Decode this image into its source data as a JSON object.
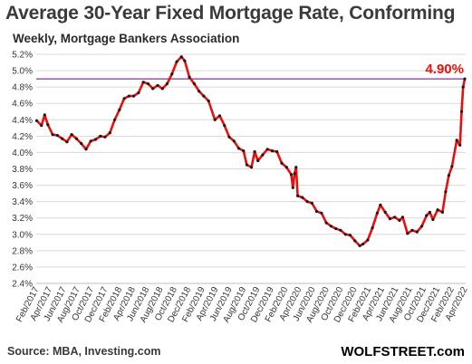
{
  "header": {
    "title": "Average 30-Year Fixed Mortgage Rate, Conforming",
    "subtitle": "Weekly, Mortgage Bankers Association"
  },
  "footer": {
    "source": "Source: MBA, Investing.com",
    "brand": "WOLFSTREET.com"
  },
  "colors": {
    "line": "#e8100c",
    "marker": "#1a1a1a",
    "reference_line": "#7b3a8c",
    "annotation": "#e8100c",
    "grid": "#d9d9d9"
  },
  "chart_data": {
    "type": "line",
    "title": "Average 30-Year Fixed Mortgage Rate, Conforming",
    "subtitle": "Weekly, Mortgage Bankers Association",
    "xlabel": "",
    "ylabel": "",
    "ylim": [
      2.4,
      5.2
    ],
    "y_ticks": [
      "2.4%",
      "2.6%",
      "2.8%",
      "3.0%",
      "3.2%",
      "3.4%",
      "3.6%",
      "3.8%",
      "4.0%",
      "4.2%",
      "4.4%",
      "4.6%",
      "4.8%",
      "5.0%",
      "5.2%"
    ],
    "x_ticks": [
      "Feb/2017",
      "Apr/2017",
      "Jun/2017",
      "Aug/2017",
      "Oct/2017",
      "Dec/2017",
      "Feb/2018",
      "Apr/2018",
      "Jun/2018",
      "Aug/2018",
      "Oct/2018",
      "Dec/2018",
      "Feb/2019",
      "Apr/2019",
      "Jun/2019",
      "Aug/2019",
      "Oct/2019",
      "Dec/2019",
      "Feb/2020",
      "Apr/2020",
      "Jun/2020",
      "Aug/2020",
      "Oct/2020",
      "Dec/2020",
      "Feb/2021",
      "Apr/2021",
      "Jun/2021",
      "Aug/2021",
      "Oct/2021",
      "Dec/2021",
      "Feb/2022",
      "Apr/2022"
    ],
    "grid": true,
    "reference_line": {
      "y": 4.9,
      "label": "4.90%"
    },
    "series": [
      {
        "marker": true,
        "points": [
          [
            "2017-02-03",
            4.39
          ],
          [
            "2017-02-24",
            4.33
          ],
          [
            "2017-03-10",
            4.46
          ],
          [
            "2017-03-24",
            4.34
          ],
          [
            "2017-04-14",
            4.22
          ],
          [
            "2017-05-05",
            4.21
          ],
          [
            "2017-05-26",
            4.17
          ],
          [
            "2017-06-16",
            4.13
          ],
          [
            "2017-07-07",
            4.22
          ],
          [
            "2017-07-28",
            4.17
          ],
          [
            "2017-08-18",
            4.11
          ],
          [
            "2017-09-08",
            4.04
          ],
          [
            "2017-09-29",
            4.14
          ],
          [
            "2017-10-20",
            4.16
          ],
          [
            "2017-11-10",
            4.2
          ],
          [
            "2017-12-01",
            4.19
          ],
          [
            "2017-12-22",
            4.24
          ],
          [
            "2018-01-12",
            4.4
          ],
          [
            "2018-02-02",
            4.52
          ],
          [
            "2018-02-23",
            4.66
          ],
          [
            "2018-03-16",
            4.69
          ],
          [
            "2018-04-06",
            4.69
          ],
          [
            "2018-04-27",
            4.73
          ],
          [
            "2018-05-18",
            4.86
          ],
          [
            "2018-06-08",
            4.84
          ],
          [
            "2018-06-29",
            4.78
          ],
          [
            "2018-07-20",
            4.82
          ],
          [
            "2018-08-10",
            4.78
          ],
          [
            "2018-08-31",
            4.84
          ],
          [
            "2018-09-21",
            4.96
          ],
          [
            "2018-10-12",
            5.11
          ],
          [
            "2018-11-02",
            5.17
          ],
          [
            "2018-11-16",
            5.12
          ],
          [
            "2018-12-07",
            4.92
          ],
          [
            "2018-12-28",
            4.84
          ],
          [
            "2019-01-18",
            4.75
          ],
          [
            "2019-02-08",
            4.69
          ],
          [
            "2019-03-01",
            4.63
          ],
          [
            "2019-03-29",
            4.4
          ],
          [
            "2019-04-19",
            4.45
          ],
          [
            "2019-05-10",
            4.33
          ],
          [
            "2019-05-31",
            4.19
          ],
          [
            "2019-06-21",
            4.14
          ],
          [
            "2019-07-12",
            4.05
          ],
          [
            "2019-08-02",
            4.02
          ],
          [
            "2019-08-16",
            3.85
          ],
          [
            "2019-09-06",
            3.82
          ],
          [
            "2019-09-20",
            4.01
          ],
          [
            "2019-10-04",
            3.9
          ],
          [
            "2019-10-25",
            3.97
          ],
          [
            "2019-11-15",
            4.04
          ],
          [
            "2019-12-06",
            4.02
          ],
          [
            "2019-12-27",
            4.01
          ],
          [
            "2020-01-17",
            3.87
          ],
          [
            "2020-02-07",
            3.82
          ],
          [
            "2020-02-28",
            3.73
          ],
          [
            "2020-03-06",
            3.57
          ],
          [
            "2020-03-13",
            3.74
          ],
          [
            "2020-03-20",
            3.82
          ],
          [
            "2020-03-27",
            3.47
          ],
          [
            "2020-04-17",
            3.45
          ],
          [
            "2020-05-08",
            3.4
          ],
          [
            "2020-05-29",
            3.38
          ],
          [
            "2020-06-19",
            3.28
          ],
          [
            "2020-07-10",
            3.26
          ],
          [
            "2020-07-31",
            3.14
          ],
          [
            "2020-08-21",
            3.1
          ],
          [
            "2020-09-11",
            3.07
          ],
          [
            "2020-10-02",
            3.05
          ],
          [
            "2020-10-23",
            3.0
          ],
          [
            "2020-11-13",
            2.99
          ],
          [
            "2020-12-04",
            2.92
          ],
          [
            "2020-12-25",
            2.86
          ],
          [
            "2021-01-08",
            2.88
          ],
          [
            "2021-01-29",
            2.93
          ],
          [
            "2021-02-19",
            3.08
          ],
          [
            "2021-03-12",
            3.26
          ],
          [
            "2021-03-26",
            3.36
          ],
          [
            "2021-04-16",
            3.27
          ],
          [
            "2021-05-07",
            3.19
          ],
          [
            "2021-05-28",
            3.21
          ],
          [
            "2021-06-18",
            3.17
          ],
          [
            "2021-07-02",
            3.21
          ],
          [
            "2021-07-23",
            3.01
          ],
          [
            "2021-08-13",
            3.05
          ],
          [
            "2021-09-03",
            3.03
          ],
          [
            "2021-09-24",
            3.1
          ],
          [
            "2021-10-15",
            3.23
          ],
          [
            "2021-10-29",
            3.27
          ],
          [
            "2021-11-12",
            3.18
          ],
          [
            "2021-12-03",
            3.3
          ],
          [
            "2021-12-24",
            3.27
          ],
          [
            "2022-01-07",
            3.52
          ],
          [
            "2022-01-21",
            3.72
          ],
          [
            "2022-02-04",
            3.83
          ],
          [
            "2022-02-25",
            4.15
          ],
          [
            "2022-03-11",
            4.09
          ],
          [
            "2022-03-18",
            4.5
          ],
          [
            "2022-03-25",
            4.8
          ],
          [
            "2022-04-01",
            4.9
          ]
        ]
      }
    ]
  }
}
